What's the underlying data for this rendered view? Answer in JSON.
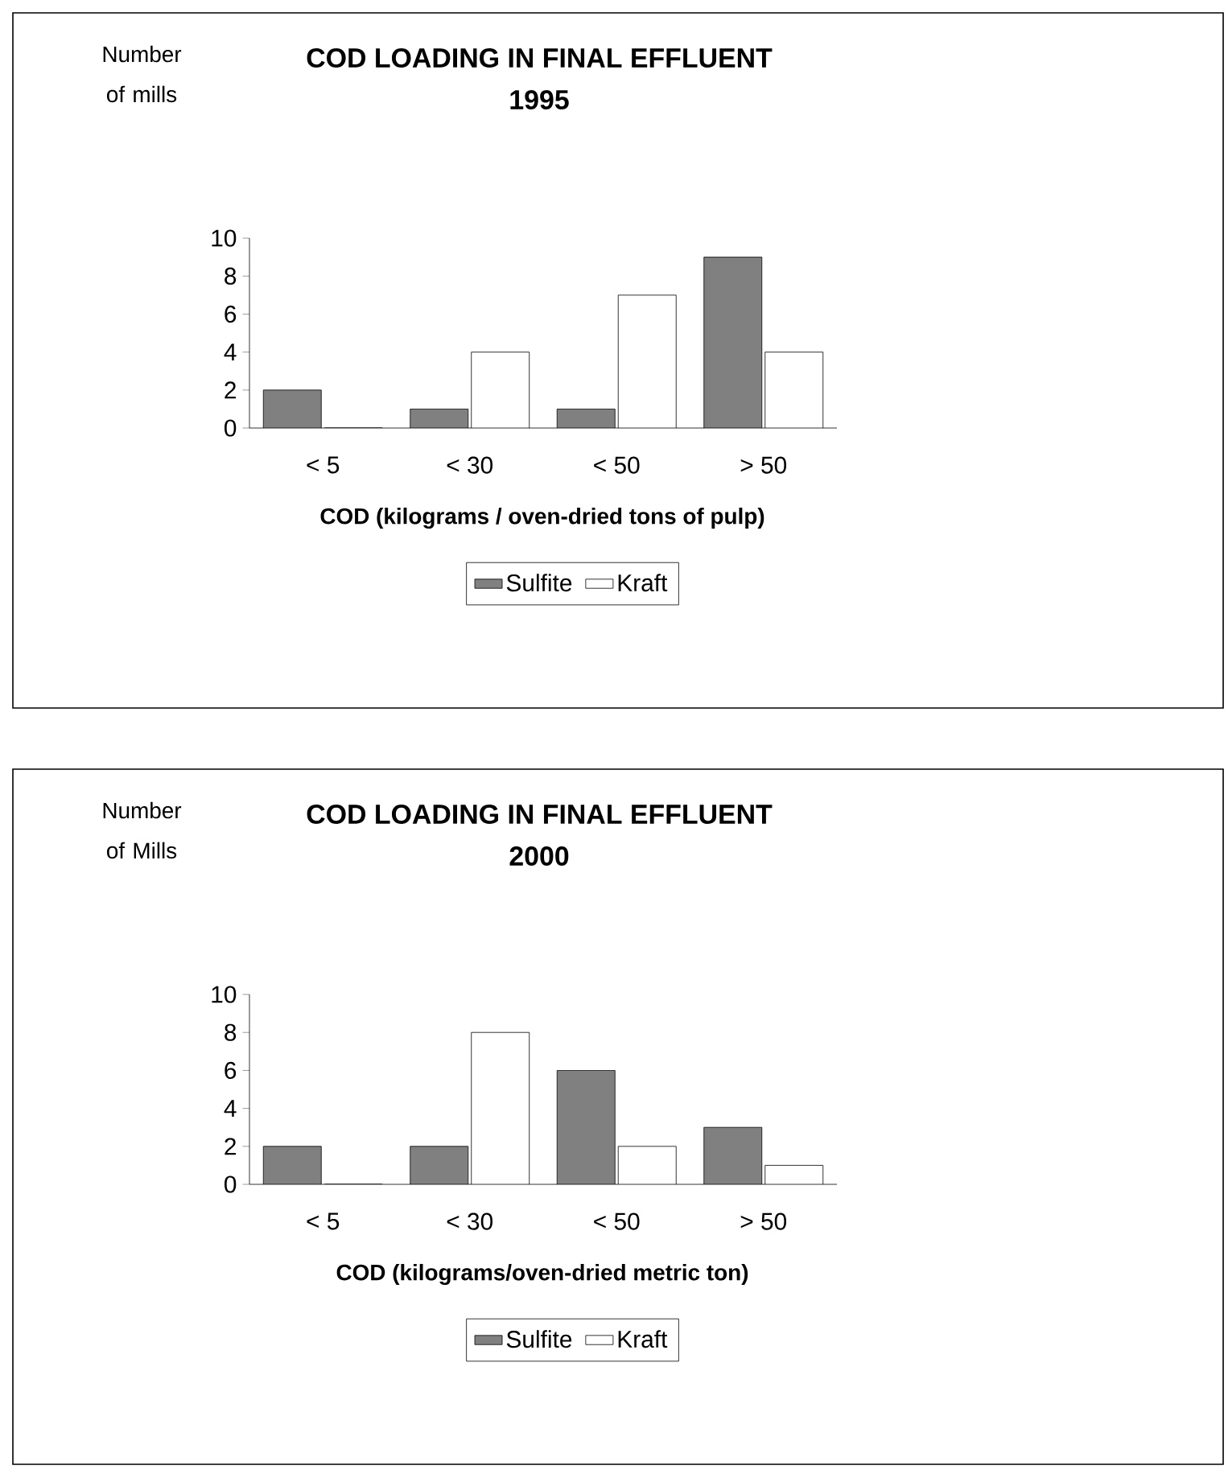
{
  "chart_data": [
    {
      "type": "bar",
      "title": "COD LOADING IN FINAL EFFLUENT",
      "subtitle": "1995",
      "ylabel": "Number of mills",
      "xlabel": "COD (kilograms / oven-dried tons of pulp)",
      "categories": [
        "< 5",
        "< 30",
        "< 50",
        "> 50"
      ],
      "series": [
        {
          "name": "Sulfite",
          "color": "#808080",
          "values": [
            2,
            1,
            1,
            9
          ]
        },
        {
          "name": "Kraft",
          "color": "#ffffff",
          "values": [
            0,
            4,
            7,
            4
          ]
        }
      ],
      "ylim": [
        0,
        10
      ],
      "yticks": [
        0,
        2,
        4,
        6,
        8,
        10
      ],
      "legend": "bottom"
    },
    {
      "type": "bar",
      "title": "COD LOADING IN FINAL EFFLUENT",
      "subtitle": "2000",
      "ylabel": "Number of Mills",
      "xlabel": "COD (kilograms/oven-dried metric ton)",
      "categories": [
        "< 5",
        "< 30",
        "< 50",
        "> 50"
      ],
      "series": [
        {
          "name": "Sulfite",
          "color": "#808080",
          "values": [
            2,
            2,
            6,
            3
          ]
        },
        {
          "name": "Kraft",
          "color": "#ffffff",
          "values": [
            0,
            8,
            2,
            1
          ]
        }
      ],
      "ylim": [
        0,
        10
      ],
      "yticks": [
        0,
        2,
        4,
        6,
        8,
        10
      ],
      "legend": "bottom"
    }
  ]
}
